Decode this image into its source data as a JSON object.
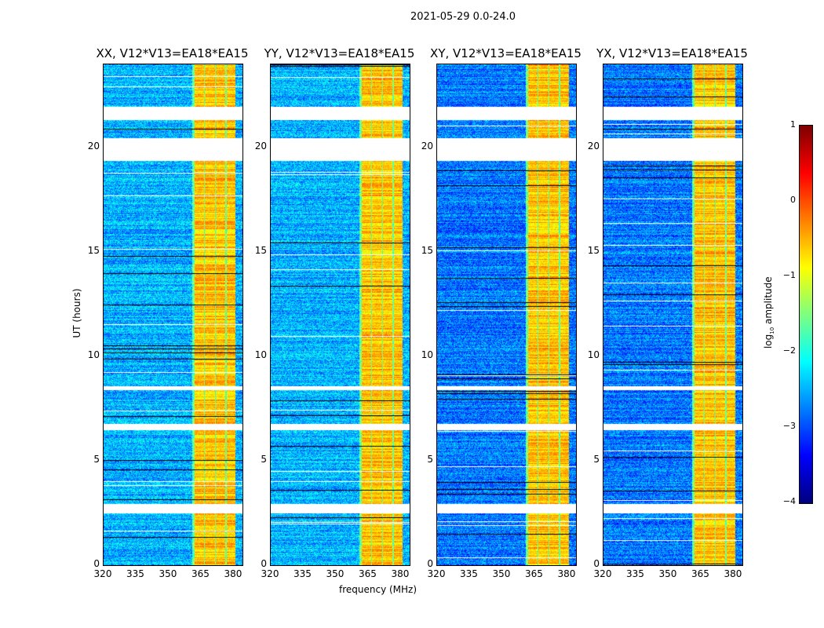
{
  "chart_data": {
    "type": "heatmap",
    "title": "2021-05-29 0.0-24.0",
    "xlabel": "frequency (MHz)",
    "ylabel": "UT (hours)",
    "xlim": [
      320,
      384
    ],
    "ylim": [
      0,
      24
    ],
    "xticks": [
      "320",
      "335",
      "350",
      "365",
      "380"
    ],
    "yticks": [
      "0",
      "5",
      "10",
      "15",
      "20"
    ],
    "panels": [
      {
        "title": "XX, V12*V13=EA18*EA15"
      },
      {
        "title": "YY, V12*V13=EA18*EA15"
      },
      {
        "title": "XY, V12*V13=EA18*EA15"
      },
      {
        "title": "YX, V12*V13=EA18*EA15"
      }
    ],
    "colorbar": {
      "label": "log10 amplitude",
      "label_main": "log",
      "label_sub": "10",
      "label_rest": " amplitude",
      "range": [
        -4,
        1
      ],
      "ticks": [
        "1",
        "0",
        "−1",
        "−2",
        "−3",
        "−4"
      ],
      "colormap": "jet"
    },
    "strong_band_mhz": [
      360.5,
      380.5
    ],
    "flagged_ut_ranges": [
      [
        21.35,
        22.0
      ],
      [
        19.4,
        20.5
      ],
      [
        8.4,
        8.6
      ],
      [
        6.5,
        6.8
      ],
      [
        2.5,
        2.95
      ]
    ],
    "background_log_amplitude": -2.8,
    "band_log_amplitude": -0.6
  }
}
